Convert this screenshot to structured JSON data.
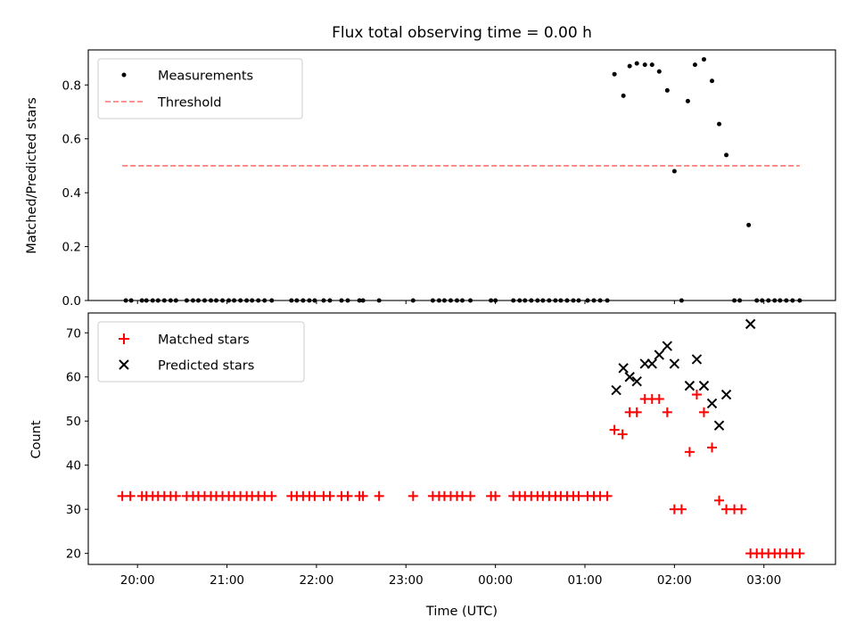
{
  "chart_data": [
    {
      "type": "scatter",
      "title": "Flux total observing time = 0.00 h",
      "xlabel": "",
      "ylabel": "Matched/Predicted stars",
      "ylim": [
        0,
        0.93
      ],
      "yticks": [
        "0.0",
        "0.2",
        "0.4",
        "0.6",
        "0.8"
      ],
      "legend": "top-left",
      "series": [
        {
          "name": "Measurements",
          "marker": "dot",
          "color": "#000000",
          "points": [
            [
              19.87,
              0
            ],
            [
              19.93,
              0
            ],
            [
              20.05,
              0
            ],
            [
              20.1,
              0
            ],
            [
              20.17,
              0
            ],
            [
              20.23,
              0
            ],
            [
              20.3,
              0
            ],
            [
              20.37,
              0
            ],
            [
              20.43,
              0
            ],
            [
              20.55,
              0
            ],
            [
              20.62,
              0
            ],
            [
              20.68,
              0
            ],
            [
              20.75,
              0
            ],
            [
              20.82,
              0
            ],
            [
              20.88,
              0
            ],
            [
              20.95,
              0
            ],
            [
              21.02,
              0
            ],
            [
              21.08,
              0
            ],
            [
              21.15,
              0
            ],
            [
              21.22,
              0
            ],
            [
              21.28,
              0
            ],
            [
              21.35,
              0
            ],
            [
              21.42,
              0
            ],
            [
              21.5,
              0
            ],
            [
              21.72,
              0
            ],
            [
              21.78,
              0
            ],
            [
              21.85,
              0
            ],
            [
              21.92,
              0
            ],
            [
              21.98,
              0
            ],
            [
              22.08,
              0
            ],
            [
              22.15,
              0
            ],
            [
              22.28,
              0
            ],
            [
              22.35,
              0
            ],
            [
              22.48,
              0
            ],
            [
              22.52,
              0
            ],
            [
              22.7,
              0
            ],
            [
              23.08,
              0
            ],
            [
              23.3,
              0
            ],
            [
              23.37,
              0
            ],
            [
              23.43,
              0
            ],
            [
              23.5,
              0
            ],
            [
              23.57,
              0
            ],
            [
              23.63,
              0
            ],
            [
              23.72,
              0
            ],
            [
              23.95,
              0
            ],
            [
              24.0,
              0
            ],
            [
              24.2,
              0
            ],
            [
              24.27,
              0
            ],
            [
              24.33,
              0
            ],
            [
              24.4,
              0
            ],
            [
              24.47,
              0
            ],
            [
              24.53,
              0
            ],
            [
              24.6,
              0
            ],
            [
              24.67,
              0
            ],
            [
              24.73,
              0
            ],
            [
              24.8,
              0
            ],
            [
              24.87,
              0
            ],
            [
              24.93,
              0
            ],
            [
              25.03,
              0
            ],
            [
              25.1,
              0
            ],
            [
              25.17,
              0
            ],
            [
              25.25,
              0
            ],
            [
              25.33,
              0.84
            ],
            [
              25.43,
              0.76
            ],
            [
              25.5,
              0.87
            ],
            [
              25.58,
              0.88
            ],
            [
              25.67,
              0.875
            ],
            [
              25.75,
              0.875
            ],
            [
              25.83,
              0.85
            ],
            [
              25.92,
              0.78
            ],
            [
              26.0,
              0.48
            ],
            [
              26.08,
              0
            ],
            [
              26.15,
              0.74
            ],
            [
              26.23,
              0.875
            ],
            [
              26.33,
              0.895
            ],
            [
              26.42,
              0.815
            ],
            [
              26.5,
              0.655
            ],
            [
              26.58,
              0.54
            ],
            [
              26.67,
              0
            ],
            [
              26.73,
              0
            ],
            [
              26.83,
              0.28
            ],
            [
              26.92,
              0
            ],
            [
              26.98,
              0
            ],
            [
              27.05,
              0
            ],
            [
              27.12,
              0
            ],
            [
              27.18,
              0
            ],
            [
              27.25,
              0
            ],
            [
              27.32,
              0
            ],
            [
              27.4,
              0
            ]
          ]
        },
        {
          "name": "Threshold",
          "marker": "dashed-line",
          "color": "#ff7070",
          "points": [
            [
              19.83,
              0.5
            ],
            [
              27.4,
              0.5
            ]
          ]
        }
      ]
    },
    {
      "type": "scatter",
      "title": "",
      "xlabel": "Time (UTC)",
      "ylabel": "Count",
      "ylim": [
        17.5,
        74.5
      ],
      "yticks": [
        "20",
        "30",
        "40",
        "50",
        "60",
        "70"
      ],
      "xlim": [
        19.45,
        27.8
      ],
      "xticks": [
        {
          "x": 20,
          "label": "20:00"
        },
        {
          "x": 21,
          "label": "21:00"
        },
        {
          "x": 22,
          "label": "22:00"
        },
        {
          "x": 23,
          "label": "23:00"
        },
        {
          "x": 24,
          "label": "00:00"
        },
        {
          "x": 25,
          "label": "01:00"
        },
        {
          "x": 26,
          "label": "02:00"
        },
        {
          "x": 27,
          "label": "03:00"
        }
      ],
      "legend": "top-left",
      "series": [
        {
          "name": "Matched stars",
          "marker": "plus",
          "color": "#ff0000",
          "points": [
            [
              19.83,
              33
            ],
            [
              19.92,
              33
            ],
            [
              20.05,
              33
            ],
            [
              20.1,
              33
            ],
            [
              20.17,
              33
            ],
            [
              20.23,
              33
            ],
            [
              20.3,
              33
            ],
            [
              20.37,
              33
            ],
            [
              20.43,
              33
            ],
            [
              20.55,
              33
            ],
            [
              20.62,
              33
            ],
            [
              20.68,
              33
            ],
            [
              20.75,
              33
            ],
            [
              20.82,
              33
            ],
            [
              20.88,
              33
            ],
            [
              20.95,
              33
            ],
            [
              21.02,
              33
            ],
            [
              21.08,
              33
            ],
            [
              21.15,
              33
            ],
            [
              21.22,
              33
            ],
            [
              21.28,
              33
            ],
            [
              21.35,
              33
            ],
            [
              21.42,
              33
            ],
            [
              21.5,
              33
            ],
            [
              21.72,
              33
            ],
            [
              21.78,
              33
            ],
            [
              21.85,
              33
            ],
            [
              21.92,
              33
            ],
            [
              21.98,
              33
            ],
            [
              22.08,
              33
            ],
            [
              22.15,
              33
            ],
            [
              22.28,
              33
            ],
            [
              22.35,
              33
            ],
            [
              22.48,
              33
            ],
            [
              22.52,
              33
            ],
            [
              22.7,
              33
            ],
            [
              23.08,
              33
            ],
            [
              23.3,
              33
            ],
            [
              23.37,
              33
            ],
            [
              23.43,
              33
            ],
            [
              23.5,
              33
            ],
            [
              23.57,
              33
            ],
            [
              23.63,
              33
            ],
            [
              23.72,
              33
            ],
            [
              23.95,
              33
            ],
            [
              24.0,
              33
            ],
            [
              24.2,
              33
            ],
            [
              24.27,
              33
            ],
            [
              24.33,
              33
            ],
            [
              24.4,
              33
            ],
            [
              24.47,
              33
            ],
            [
              24.53,
              33
            ],
            [
              24.6,
              33
            ],
            [
              24.67,
              33
            ],
            [
              24.73,
              33
            ],
            [
              24.8,
              33
            ],
            [
              24.87,
              33
            ],
            [
              24.93,
              33
            ],
            [
              25.03,
              33
            ],
            [
              25.1,
              33
            ],
            [
              25.17,
              33
            ],
            [
              25.25,
              33
            ],
            [
              25.33,
              48
            ],
            [
              25.42,
              47
            ],
            [
              25.5,
              52
            ],
            [
              25.58,
              52
            ],
            [
              25.67,
              55
            ],
            [
              25.75,
              55
            ],
            [
              25.83,
              55
            ],
            [
              25.92,
              52
            ],
            [
              26.0,
              30
            ],
            [
              26.08,
              30
            ],
            [
              26.17,
              43
            ],
            [
              26.25,
              56
            ],
            [
              26.33,
              52
            ],
            [
              26.42,
              44
            ],
            [
              26.5,
              32
            ],
            [
              26.58,
              30
            ],
            [
              26.67,
              30
            ],
            [
              26.75,
              30
            ],
            [
              26.85,
              20
            ],
            [
              26.92,
              20
            ],
            [
              26.98,
              20
            ],
            [
              27.05,
              20
            ],
            [
              27.12,
              20
            ],
            [
              27.18,
              20
            ],
            [
              27.25,
              20
            ],
            [
              27.32,
              20
            ],
            [
              27.4,
              20
            ]
          ]
        },
        {
          "name": "Predicted stars",
          "marker": "x",
          "color": "#000000",
          "points": [
            [
              25.35,
              57
            ],
            [
              25.43,
              62
            ],
            [
              25.5,
              60
            ],
            [
              25.58,
              59
            ],
            [
              25.67,
              63
            ],
            [
              25.75,
              63
            ],
            [
              25.83,
              65
            ],
            [
              25.92,
              67
            ],
            [
              26.0,
              63
            ],
            [
              26.17,
              58
            ],
            [
              26.25,
              64
            ],
            [
              26.33,
              58
            ],
            [
              26.42,
              54
            ],
            [
              26.5,
              49
            ],
            [
              26.58,
              56
            ],
            [
              26.85,
              72
            ]
          ]
        }
      ]
    }
  ]
}
